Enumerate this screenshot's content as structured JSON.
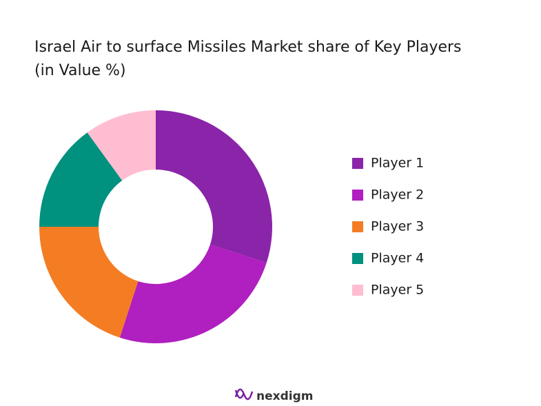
{
  "chart_data": {
    "type": "donut",
    "title": "Israel Air to surface Missiles Market share of Key Players (in Value %)",
    "categories": [
      "Player 1",
      "Player 2",
      "Player 3",
      "Player 4",
      "Player 5"
    ],
    "values": [
      30,
      25,
      20,
      15,
      10
    ],
    "colors": [
      "#8a24a9",
      "#b01fbf",
      "#f47d24",
      "#00917f",
      "#ffbdd1"
    ],
    "legend": "right"
  },
  "footer": {
    "brand": "nexdigm"
  }
}
